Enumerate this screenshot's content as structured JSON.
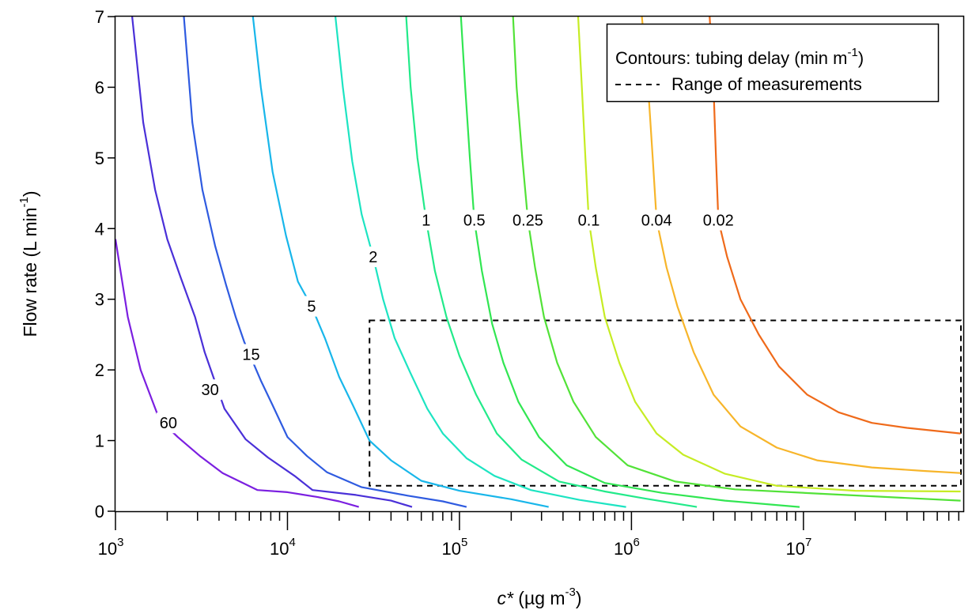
{
  "chart_data": {
    "type": "line",
    "xscale": "log",
    "xlim": [
      1000,
      85000000
    ],
    "ylim": [
      0,
      7
    ],
    "xlabel": {
      "italic": "c*",
      "text": " (µg m",
      "sup": "-3",
      "end": ")"
    },
    "ylabel": {
      "text": "Flow rate (L min",
      "sup": "-1",
      "end": ")"
    },
    "xticks": [
      {
        "value": 1000,
        "base": "10",
        "exp": "3"
      },
      {
        "value": 10000,
        "base": "10",
        "exp": "4"
      },
      {
        "value": 100000,
        "base": "10",
        "exp": "5"
      },
      {
        "value": 1000000,
        "base": "10",
        "exp": "6"
      },
      {
        "value": 10000000,
        "base": "10",
        "exp": "7"
      }
    ],
    "yticks": [
      "0",
      "1",
      "2",
      "3",
      "4",
      "5",
      "6",
      "7"
    ],
    "legend": {
      "placement": "top-right",
      "contours_label": "Contours: tubing delay (min m",
      "contours_sup": "-1",
      "contours_end": ")",
      "range_label": "Range of measurements"
    },
    "range_box": {
      "x": [
        30000,
        85000000
      ],
      "y": [
        0.36,
        2.7
      ]
    },
    "series": [
      {
        "name": "60",
        "color": "#7b1fe0",
        "label_at": [
          2030,
          1.25
        ],
        "points": [
          [
            1000,
            3.85
          ],
          [
            1180,
            2.75
          ],
          [
            1400,
            2.0
          ],
          [
            1800,
            1.3
          ],
          [
            2300,
            1.05
          ],
          [
            3100,
            0.78
          ],
          [
            4200,
            0.54
          ],
          [
            6700,
            0.3
          ],
          [
            10000,
            0.27
          ],
          [
            15000,
            0.2
          ],
          [
            20000,
            0.14
          ],
          [
            26000,
            0.06
          ]
        ]
      },
      {
        "name": "30",
        "color": "#4a30d8",
        "label_at": [
          3550,
          1.72
        ],
        "points": [
          [
            1250,
            7.0
          ],
          [
            1450,
            5.5
          ],
          [
            1700,
            4.55
          ],
          [
            2000,
            3.85
          ],
          [
            2400,
            3.3
          ],
          [
            2900,
            2.75
          ],
          [
            3300,
            2.25
          ],
          [
            4300,
            1.45
          ],
          [
            5700,
            1.02
          ],
          [
            7700,
            0.76
          ],
          [
            11000,
            0.5
          ],
          [
            14000,
            0.3
          ],
          [
            25000,
            0.23
          ],
          [
            40000,
            0.15
          ],
          [
            53000,
            0.06
          ]
        ]
      },
      {
        "name": "15",
        "color": "#2f5be0",
        "label_at": [
          6150,
          2.22
        ],
        "points": [
          [
            2500,
            7.0
          ],
          [
            2800,
            5.5
          ],
          [
            3200,
            4.55
          ],
          [
            3800,
            3.75
          ],
          [
            4400,
            3.2
          ],
          [
            5000,
            2.75
          ],
          [
            5600,
            2.4
          ],
          [
            7000,
            1.85
          ],
          [
            8200,
            1.5
          ],
          [
            10000,
            1.05
          ],
          [
            13000,
            0.78
          ],
          [
            17000,
            0.55
          ],
          [
            27000,
            0.34
          ],
          [
            50000,
            0.22
          ],
          [
            80000,
            0.14
          ],
          [
            110000,
            0.06
          ]
        ]
      },
      {
        "name": "5",
        "color": "#18b6ea",
        "label_at": [
          13800,
          2.9
        ],
        "points": [
          [
            6300,
            7.0
          ],
          [
            7000,
            6.0
          ],
          [
            8200,
            4.8
          ],
          [
            9800,
            3.9
          ],
          [
            11500,
            3.25
          ],
          [
            13800,
            2.9
          ],
          [
            16500,
            2.45
          ],
          [
            20000,
            1.9
          ],
          [
            24000,
            1.5
          ],
          [
            30000,
            1.0
          ],
          [
            40000,
            0.72
          ],
          [
            60000,
            0.43
          ],
          [
            100000,
            0.29
          ],
          [
            200000,
            0.17
          ],
          [
            330000,
            0.06
          ]
        ]
      },
      {
        "name": "2",
        "color": "#1de4c2",
        "label_at": [
          31500,
          3.6
        ],
        "points": [
          [
            19000,
            7.0
          ],
          [
            21000,
            6.0
          ],
          [
            23800,
            4.95
          ],
          [
            27000,
            4.2
          ],
          [
            31500,
            3.6
          ],
          [
            36000,
            3.0
          ],
          [
            42000,
            2.45
          ],
          [
            52000,
            1.95
          ],
          [
            65000,
            1.45
          ],
          [
            80000,
            1.1
          ],
          [
            110000,
            0.75
          ],
          [
            160000,
            0.5
          ],
          [
            260000,
            0.3
          ],
          [
            500000,
            0.16
          ],
          [
            930000,
            0.06
          ]
        ]
      },
      {
        "name": "1",
        "color": "#22ea8a",
        "label_at": [
          64000,
          4.12
        ],
        "points": [
          [
            49000,
            7.0
          ],
          [
            52000,
            6.0
          ],
          [
            57000,
            5.0
          ],
          [
            64000,
            4.12
          ],
          [
            72000,
            3.4
          ],
          [
            84000,
            2.75
          ],
          [
            100000,
            2.2
          ],
          [
            125000,
            1.65
          ],
          [
            165000,
            1.1
          ],
          [
            230000,
            0.73
          ],
          [
            380000,
            0.42
          ],
          [
            700000,
            0.28
          ],
          [
            1200000,
            0.18
          ],
          [
            2400000,
            0.06
          ]
        ]
      },
      {
        "name": "0.5",
        "color": "#31e652",
        "label_at": [
          122000,
          4.12
        ],
        "points": [
          [
            102000,
            7.0
          ],
          [
            108000,
            6.0
          ],
          [
            115000,
            5.0
          ],
          [
            122000,
            4.12
          ],
          [
            135000,
            3.4
          ],
          [
            155000,
            2.65
          ],
          [
            180000,
            2.1
          ],
          [
            220000,
            1.55
          ],
          [
            290000,
            1.05
          ],
          [
            420000,
            0.65
          ],
          [
            700000,
            0.4
          ],
          [
            1500000,
            0.26
          ],
          [
            3500000,
            0.15
          ],
          [
            9500000,
            0.06
          ]
        ]
      },
      {
        "name": "0.25",
        "color": "#52e238",
        "label_at": [
          250000,
          4.12
        ],
        "points": [
          [
            205000,
            7.0
          ],
          [
            215000,
            6.0
          ],
          [
            232000,
            5.0
          ],
          [
            250000,
            4.12
          ],
          [
            275000,
            3.45
          ],
          [
            310000,
            2.75
          ],
          [
            370000,
            2.1
          ],
          [
            460000,
            1.55
          ],
          [
            620000,
            1.05
          ],
          [
            950000,
            0.65
          ],
          [
            1800000,
            0.42
          ],
          [
            4000000,
            0.31
          ],
          [
            12000000,
            0.25
          ],
          [
            82000000,
            0.15
          ]
        ]
      },
      {
        "name": "0.1",
        "color": "#c6ec24",
        "label_at": [
          565000,
          4.12
        ],
        "points": [
          [
            490000,
            7.0
          ],
          [
            515000,
            6.0
          ],
          [
            540000,
            5.0
          ],
          [
            565000,
            4.12
          ],
          [
            620000,
            3.45
          ],
          [
            700000,
            2.75
          ],
          [
            850000,
            2.1
          ],
          [
            1050000,
            1.55
          ],
          [
            1400000,
            1.1
          ],
          [
            2000000,
            0.8
          ],
          [
            3500000,
            0.53
          ],
          [
            7000000,
            0.36
          ],
          [
            20000000,
            0.29
          ],
          [
            82000000,
            0.28
          ]
        ]
      },
      {
        "name": "0.04",
        "color": "#f7b52a",
        "label_at": [
          1400000,
          4.12
        ],
        "points": [
          [
            1150000,
            7.0
          ],
          [
            1250000,
            6.0
          ],
          [
            1330000,
            5.0
          ],
          [
            1400000,
            4.12
          ],
          [
            1600000,
            3.45
          ],
          [
            1850000,
            2.9
          ],
          [
            2300000,
            2.25
          ],
          [
            3000000,
            1.65
          ],
          [
            4300000,
            1.2
          ],
          [
            7000000,
            0.9
          ],
          [
            12000000,
            0.72
          ],
          [
            25000000,
            0.62
          ],
          [
            50000000,
            0.57
          ],
          [
            82000000,
            0.54
          ]
        ]
      },
      {
        "name": "0.02",
        "color": "#ef6a1a",
        "label_at": [
          3200000,
          4.12
        ],
        "points": [
          [
            2850000,
            7.0
          ],
          [
            3000000,
            6.0
          ],
          [
            3100000,
            5.0
          ],
          [
            3200000,
            4.12
          ],
          [
            3600000,
            3.6
          ],
          [
            4300000,
            3.0
          ],
          [
            5500000,
            2.5
          ],
          [
            7200000,
            2.05
          ],
          [
            10500000,
            1.65
          ],
          [
            16000000,
            1.4
          ],
          [
            25000000,
            1.25
          ],
          [
            40000000,
            1.18
          ],
          [
            82000000,
            1.1
          ]
        ]
      }
    ]
  }
}
